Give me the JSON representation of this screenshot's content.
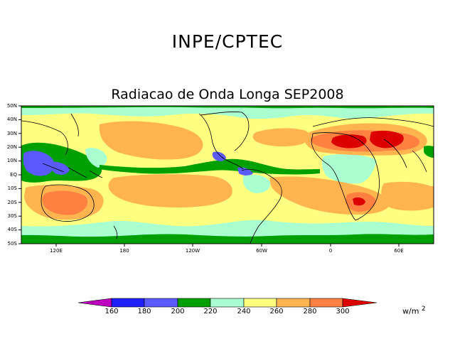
{
  "header": {
    "organization": "INPE/CPTEC",
    "title": "Radiacao de Onda Longa SEP2008"
  },
  "map": {
    "lat_labels": [
      "50N",
      "40N",
      "30N",
      "20N",
      "10N",
      "EQ",
      "10S",
      "20S",
      "30S",
      "40S",
      "50S"
    ],
    "lon_labels": [
      "120E",
      "180",
      "120W",
      "60W",
      "0",
      "60E"
    ]
  },
  "colorbar": {
    "levels": [
      "160",
      "180",
      "200",
      "220",
      "240",
      "260",
      "280",
      "300"
    ],
    "units": "w/m",
    "units_exp": "2",
    "colors": [
      "#c000c0",
      "#1e1eff",
      "#5a5aff",
      "#00a000",
      "#aaffd0",
      "#ffff80",
      "#ffb450",
      "#ff8040",
      "#dc0000"
    ]
  }
}
